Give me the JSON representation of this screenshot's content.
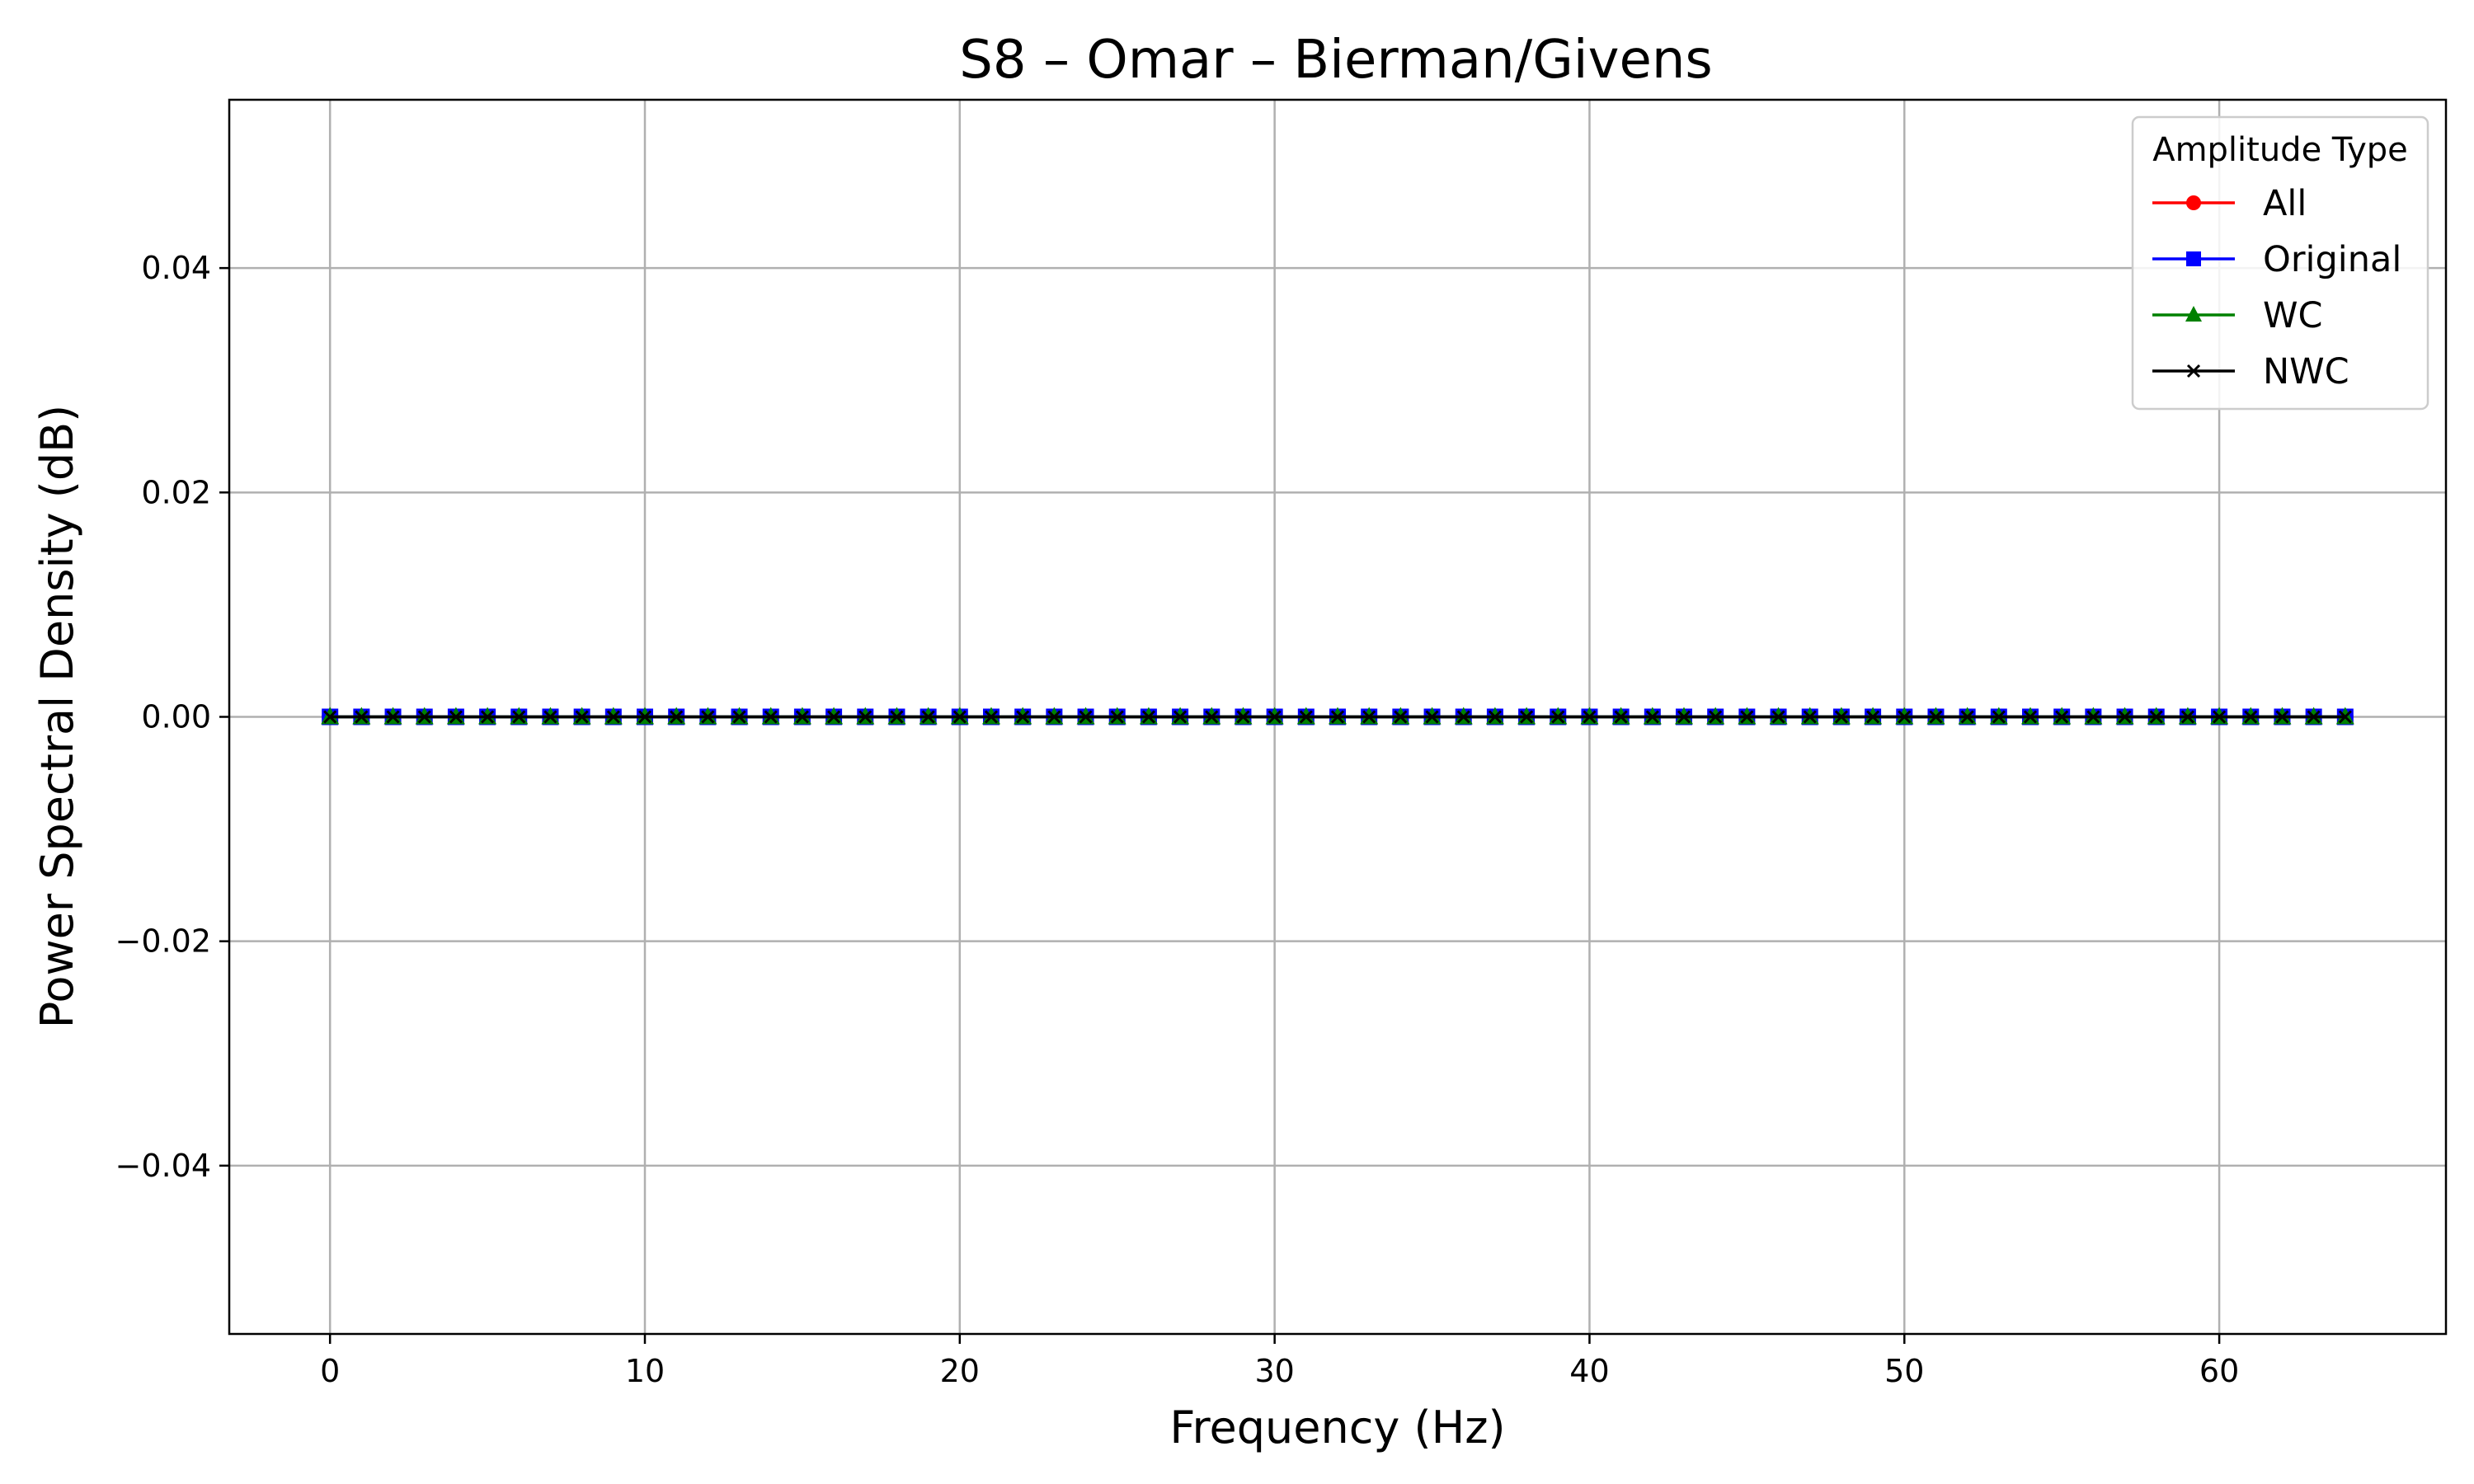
{
  "chart_data": {
    "type": "line",
    "title": "S8 – Omar – Bierman/Givens",
    "xlabel": "Frequency (Hz)",
    "ylabel": "Power Spectral Density (dB)",
    "xlim": [
      -3.2,
      67.2
    ],
    "ylim": [
      -0.055,
      0.055
    ],
    "xticks": [
      0,
      10,
      20,
      30,
      40,
      50,
      60
    ],
    "yticks": [
      -0.04,
      -0.02,
      0.0,
      0.02,
      0.04
    ],
    "ytick_labels": [
      "−0.04",
      "−0.02",
      "0.00",
      "0.02",
      "0.04"
    ],
    "grid": true,
    "legend": {
      "title": "Amplitude Type",
      "placement": "top-right"
    },
    "x": [
      0,
      1,
      2,
      3,
      4,
      5,
      6,
      7,
      8,
      9,
      10,
      11,
      12,
      13,
      14,
      15,
      16,
      17,
      18,
      19,
      20,
      21,
      22,
      23,
      24,
      25,
      26,
      27,
      28,
      29,
      30,
      31,
      32,
      33,
      34,
      35,
      36,
      37,
      38,
      39,
      40,
      41,
      42,
      43,
      44,
      45,
      46,
      47,
      48,
      49,
      50,
      51,
      52,
      53,
      54,
      55,
      56,
      57,
      58,
      59,
      60,
      61,
      62,
      63,
      64
    ],
    "series": [
      {
        "name": "All",
        "color": "#ff0000",
        "marker": "circle",
        "values": [
          0,
          0,
          0,
          0,
          0,
          0,
          0,
          0,
          0,
          0,
          0,
          0,
          0,
          0,
          0,
          0,
          0,
          0,
          0,
          0,
          0,
          0,
          0,
          0,
          0,
          0,
          0,
          0,
          0,
          0,
          0,
          0,
          0,
          0,
          0,
          0,
          0,
          0,
          0,
          0,
          0,
          0,
          0,
          0,
          0,
          0,
          0,
          0,
          0,
          0,
          0,
          0,
          0,
          0,
          0,
          0,
          0,
          0,
          0,
          0,
          0,
          0,
          0,
          0,
          0
        ]
      },
      {
        "name": "Original",
        "color": "#0000ff",
        "marker": "square",
        "values": [
          0,
          0,
          0,
          0,
          0,
          0,
          0,
          0,
          0,
          0,
          0,
          0,
          0,
          0,
          0,
          0,
          0,
          0,
          0,
          0,
          0,
          0,
          0,
          0,
          0,
          0,
          0,
          0,
          0,
          0,
          0,
          0,
          0,
          0,
          0,
          0,
          0,
          0,
          0,
          0,
          0,
          0,
          0,
          0,
          0,
          0,
          0,
          0,
          0,
          0,
          0,
          0,
          0,
          0,
          0,
          0,
          0,
          0,
          0,
          0,
          0,
          0,
          0,
          0,
          0
        ]
      },
      {
        "name": "WC",
        "color": "#008000",
        "marker": "triangle",
        "values": [
          0,
          0,
          0,
          0,
          0,
          0,
          0,
          0,
          0,
          0,
          0,
          0,
          0,
          0,
          0,
          0,
          0,
          0,
          0,
          0,
          0,
          0,
          0,
          0,
          0,
          0,
          0,
          0,
          0,
          0,
          0,
          0,
          0,
          0,
          0,
          0,
          0,
          0,
          0,
          0,
          0,
          0,
          0,
          0,
          0,
          0,
          0,
          0,
          0,
          0,
          0,
          0,
          0,
          0,
          0,
          0,
          0,
          0,
          0,
          0,
          0,
          0,
          0,
          0,
          0
        ]
      },
      {
        "name": "NWC",
        "color": "#000000",
        "marker": "x",
        "values": [
          0,
          0,
          0,
          0,
          0,
          0,
          0,
          0,
          0,
          0,
          0,
          0,
          0,
          0,
          0,
          0,
          0,
          0,
          0,
          0,
          0,
          0,
          0,
          0,
          0,
          0,
          0,
          0,
          0,
          0,
          0,
          0,
          0,
          0,
          0,
          0,
          0,
          0,
          0,
          0,
          0,
          0,
          0,
          0,
          0,
          0,
          0,
          0,
          0,
          0,
          0,
          0,
          0,
          0,
          0,
          0,
          0,
          0,
          0,
          0,
          0,
          0,
          0,
          0,
          0
        ]
      }
    ]
  }
}
